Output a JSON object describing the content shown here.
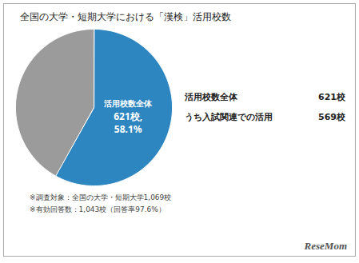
{
  "chart_data": {
    "type": "pie",
    "title": "全国の大学・短期大学における「漢検」活用校数",
    "values": [
      621,
      448
    ],
    "colors": [
      "#2E86C1",
      "#9B9B9B"
    ],
    "annotations": {
      "slice": [
        "活用校数全体",
        "621校,",
        "58.1%"
      ],
      "summary": [
        {
          "label": "活用校数全体",
          "value": "621校"
        },
        {
          "label": "うち入試関連での活用",
          "value": "569校"
        }
      ],
      "footnotes": [
        "※調査対象：全国の大学・短期大学1,069校",
        "※有効回答数：1,043校（回答率97.6%）"
      ],
      "watermark": "ReseMom"
    }
  }
}
